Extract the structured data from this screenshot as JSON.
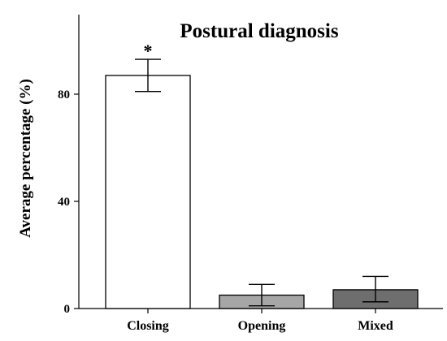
{
  "chart_data": {
    "type": "bar",
    "title": "Postural diagnosis",
    "xlabel": "",
    "ylabel": "Average percentage (%)",
    "ylim": [
      0,
      110
    ],
    "yticks": [
      0,
      40,
      80
    ],
    "categories": [
      "Closing",
      "Opening",
      "Mixed"
    ],
    "values": [
      87,
      5,
      7
    ],
    "error_low": [
      81,
      1,
      2.5
    ],
    "error_high": [
      93,
      9,
      12
    ],
    "annotations": [
      "*",
      "",
      ""
    ],
    "colors": [
      "#ffffff",
      "#a6a6a6",
      "#6e6e6e"
    ],
    "grid": false,
    "legend": "none"
  }
}
